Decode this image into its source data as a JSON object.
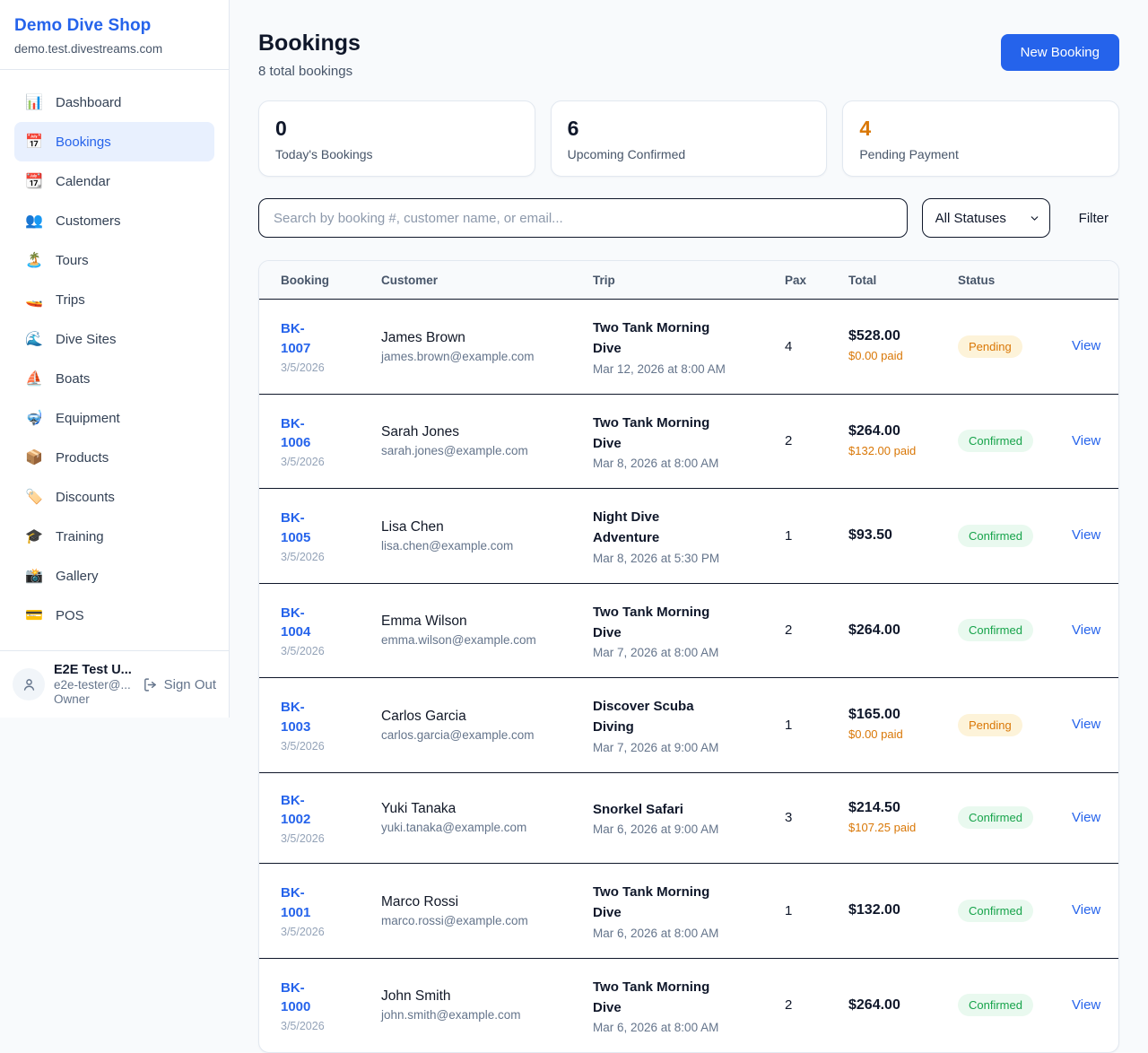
{
  "colors": {
    "accent": "#2563eb",
    "pending": "#d97706",
    "confirmed": "#16a34a",
    "dark_text": "#0f172a"
  },
  "sidebar": {
    "brand": "Demo Dive Shop",
    "domain": "demo.test.divestreams.com",
    "nav": [
      {
        "icon": "📊",
        "label": "Dashboard",
        "active": false
      },
      {
        "icon": "📅",
        "label": "Bookings",
        "active": true
      },
      {
        "icon": "📆",
        "label": "Calendar",
        "active": false
      },
      {
        "icon": "👥",
        "label": "Customers",
        "active": false
      },
      {
        "icon": "🏝️",
        "label": "Tours",
        "active": false
      },
      {
        "icon": "🚤",
        "label": "Trips",
        "active": false
      },
      {
        "icon": "🌊",
        "label": "Dive Sites",
        "active": false
      },
      {
        "icon": "⛵",
        "label": "Boats",
        "active": false
      },
      {
        "icon": "🤿",
        "label": "Equipment",
        "active": false
      },
      {
        "icon": "📦",
        "label": "Products",
        "active": false
      },
      {
        "icon": "🏷️",
        "label": "Discounts",
        "active": false
      },
      {
        "icon": "🎓",
        "label": "Training",
        "active": false
      },
      {
        "icon": "📸",
        "label": "Gallery",
        "active": false
      },
      {
        "icon": "💳",
        "label": "POS",
        "active": false
      }
    ],
    "user": {
      "name": "E2E Test U...",
      "email": "e2e-tester@...",
      "role": "Owner",
      "sign_out_label": "Sign Out"
    }
  },
  "header": {
    "title": "Bookings",
    "subtitle": "8 total bookings",
    "new_booking_label": "New Booking"
  },
  "stats": [
    {
      "value": "0",
      "label": "Today's Bookings",
      "color": "#0f172a"
    },
    {
      "value": "6",
      "label": "Upcoming Confirmed",
      "color": "#0f172a"
    },
    {
      "value": "4",
      "label": "Pending Payment",
      "color": "#d97706"
    }
  ],
  "filters": {
    "search_placeholder": "Search by booking #, customer name, or email...",
    "status_select_value": "All Statuses",
    "filter_label": "Filter"
  },
  "table": {
    "columns": [
      "Booking",
      "Customer",
      "Trip",
      "Pax",
      "Total",
      "Status"
    ],
    "view_label": "View",
    "rows": [
      {
        "id": "BK-1007",
        "date": "3/5/2026",
        "customer": "James Brown",
        "email": "james.brown@example.com",
        "trip": "Two Tank Morning Dive",
        "trip_date": "Mar 12, 2026 at 8:00 AM",
        "pax": "4",
        "total": "$528.00",
        "paid": "$0.00 paid",
        "status": "Pending"
      },
      {
        "id": "BK-1006",
        "date": "3/5/2026",
        "customer": "Sarah Jones",
        "email": "sarah.jones@example.com",
        "trip": "Two Tank Morning Dive",
        "trip_date": "Mar 8, 2026 at 8:00 AM",
        "pax": "2",
        "total": "$264.00",
        "paid": "$132.00 paid",
        "status": "Confirmed"
      },
      {
        "id": "BK-1005",
        "date": "3/5/2026",
        "customer": "Lisa Chen",
        "email": "lisa.chen@example.com",
        "trip": "Night Dive Adventure",
        "trip_date": "Mar 8, 2026 at 5:30 PM",
        "pax": "1",
        "total": "$93.50",
        "paid": "",
        "status": "Confirmed"
      },
      {
        "id": "BK-1004",
        "date": "3/5/2026",
        "customer": "Emma Wilson",
        "email": "emma.wilson@example.com",
        "trip": "Two Tank Morning Dive",
        "trip_date": "Mar 7, 2026 at 8:00 AM",
        "pax": "2",
        "total": "$264.00",
        "paid": "",
        "status": "Confirmed"
      },
      {
        "id": "BK-1003",
        "date": "3/5/2026",
        "customer": "Carlos Garcia",
        "email": "carlos.garcia@example.com",
        "trip": "Discover Scuba Diving",
        "trip_date": "Mar 7, 2026 at 9:00 AM",
        "pax": "1",
        "total": "$165.00",
        "paid": "$0.00 paid",
        "status": "Pending"
      },
      {
        "id": "BK-1002",
        "date": "3/5/2026",
        "customer": "Yuki Tanaka",
        "email": "yuki.tanaka@example.com",
        "trip": "Snorkel Safari",
        "trip_date": "Mar 6, 2026 at 9:00 AM",
        "pax": "3",
        "total": "$214.50",
        "paid": "$107.25 paid",
        "status": "Confirmed"
      },
      {
        "id": "BK-1001",
        "date": "3/5/2026",
        "customer": "Marco Rossi",
        "email": "marco.rossi@example.com",
        "trip": "Two Tank Morning Dive",
        "trip_date": "Mar 6, 2026 at 8:00 AM",
        "pax": "1",
        "total": "$132.00",
        "paid": "",
        "status": "Confirmed"
      },
      {
        "id": "BK-1000",
        "date": "3/5/2026",
        "customer": "John Smith",
        "email": "john.smith@example.com",
        "trip": "Two Tank Morning Dive",
        "trip_date": "Mar 6, 2026 at 8:00 AM",
        "pax": "2",
        "total": "$264.00",
        "paid": "",
        "status": "Confirmed"
      }
    ]
  }
}
